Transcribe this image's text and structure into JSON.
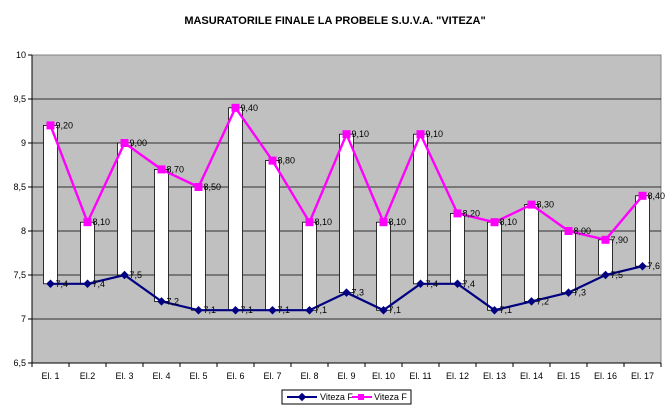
{
  "chart_data": {
    "type": "line",
    "title": "MASURATORILE FINALE LA PROBELE S.U.V.A.  \"VITEZA\"",
    "xlabel": "",
    "ylabel": "",
    "ylim": [
      6.5,
      10
    ],
    "yticks": [
      "6,5",
      "7",
      "7,5",
      "8",
      "8,5",
      "9",
      "9,5",
      "10"
    ],
    "ytick_values": [
      6.5,
      7,
      7.5,
      8,
      8.5,
      9,
      9.5,
      10
    ],
    "grid": true,
    "legend_position": "bottom",
    "background_color": "#c0c0c0",
    "categories": [
      "El. 1",
      "El.2",
      "El. 3",
      "El. 4",
      "El. 5",
      "El. 6",
      "El. 7",
      "El. 8",
      "El. 9",
      "El. 10",
      "El. 11",
      "El. 12",
      "El. 13",
      "El. 14",
      "El. 15",
      "El. 16",
      "El. 17"
    ],
    "series": [
      {
        "name": "Viteza F",
        "color": "#000080",
        "marker": "diamond",
        "values": [
          7.4,
          7.4,
          7.5,
          7.2,
          7.1,
          7.1,
          7.1,
          7.1,
          7.3,
          7.1,
          7.4,
          7.4,
          7.1,
          7.2,
          7.3,
          7.5,
          7.6
        ],
        "labels": [
          "7,4",
          "7,4",
          "7,5",
          "7,2",
          "7,1",
          "7,1",
          "7,1",
          "7,1",
          "7,3",
          "7,1",
          "7,4",
          "7,4",
          "7,1",
          "7,2",
          "7,3",
          "7,5",
          "7,6"
        ]
      },
      {
        "name": "Viteza F",
        "color": "#ff00ff",
        "marker": "square",
        "values": [
          9.2,
          8.1,
          9.0,
          8.7,
          8.5,
          9.4,
          8.8,
          8.1,
          9.1,
          8.1,
          9.1,
          8.2,
          8.1,
          8.3,
          8.0,
          7.9,
          8.4
        ],
        "labels": [
          "9,20",
          "8,10",
          "9,00",
          "8,70",
          "8,50",
          "9,40",
          "8,80",
          "8,10",
          "9,10",
          "8,10",
          "9,10",
          "8,20",
          "8,10",
          "8,30",
          "8,00",
          "7,90",
          "8,40"
        ]
      }
    ],
    "high_low_bars": {
      "color": "#ffffff",
      "border": "#000000"
    }
  }
}
